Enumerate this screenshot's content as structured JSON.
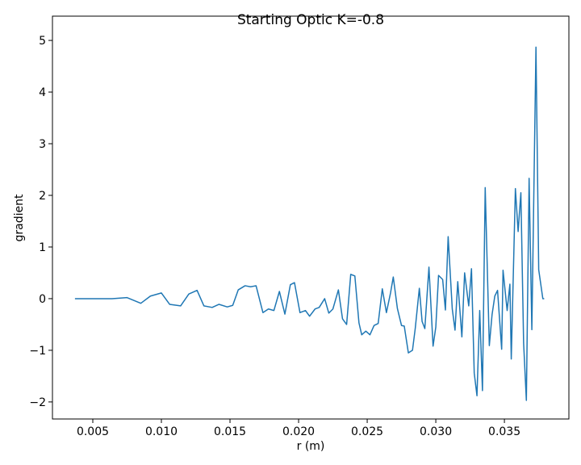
{
  "chart_data": {
    "type": "line",
    "title": "Starting Optic K=-0.8",
    "x_label": "r (m)",
    "y_label": "gradient",
    "x": [
      0.0037,
      0.0064,
      0.0075,
      0.0085,
      0.0092,
      0.01,
      0.0106,
      0.0114,
      0.012,
      0.0126,
      0.0131,
      0.0137,
      0.0142,
      0.0148,
      0.0152,
      0.0156,
      0.0161,
      0.0165,
      0.0169,
      0.0174,
      0.0178,
      0.0182,
      0.0186,
      0.019,
      0.0194,
      0.0197,
      0.0201,
      0.0205,
      0.0208,
      0.0212,
      0.0215,
      0.0219,
      0.0222,
      0.0225,
      0.0229,
      0.0232,
      0.0235,
      0.0238,
      0.0241,
      0.0244,
      0.0246,
      0.0249,
      0.0252,
      0.0255,
      0.0258,
      0.0261,
      0.0264,
      0.0267,
      0.0269,
      0.0272,
      0.0275,
      0.0277,
      0.028,
      0.0283,
      0.0285,
      0.0288,
      0.029,
      0.0292,
      0.0295,
      0.0298,
      0.03,
      0.0302,
      0.0305,
      0.0307,
      0.0309,
      0.0312,
      0.0314,
      0.0316,
      0.0319,
      0.0321,
      0.0324,
      0.0326,
      0.0328,
      0.033,
      0.0332,
      0.0334,
      0.0336,
      0.0339,
      0.0341,
      0.0343,
      0.0345,
      0.0348,
      0.0349,
      0.0352,
      0.0354,
      0.0355,
      0.0358,
      0.036,
      0.0362,
      0.0364,
      0.0366,
      0.0368,
      0.037,
      0.0373,
      0.0375,
      0.0378,
      0.0379
    ],
    "series": [
      {
        "name": "gradient",
        "color": "#1f77b4",
        "values": [
          0,
          0,
          0.02,
          -0.09,
          0.05,
          0.11,
          -0.11,
          -0.14,
          0.09,
          0.16,
          -0.14,
          -0.17,
          -0.11,
          -0.16,
          -0.13,
          0.17,
          0.25,
          0.23,
          0.25,
          -0.27,
          -0.2,
          -0.23,
          0.14,
          -0.3,
          0.27,
          0.31,
          -0.27,
          -0.23,
          -0.34,
          -0.2,
          -0.17,
          0,
          -0.28,
          -0.2,
          0.17,
          -0.39,
          -0.5,
          0.47,
          0.44,
          -0.47,
          -0.7,
          -0.63,
          -0.7,
          -0.52,
          -0.48,
          0.19,
          -0.27,
          0.11,
          0.42,
          -0.19,
          -0.52,
          -0.53,
          -1.05,
          -1.0,
          -0.58,
          0.2,
          -0.44,
          -0.58,
          0.61,
          -0.92,
          -0.55,
          0.45,
          0.37,
          -0.22,
          1.2,
          -0.2,
          -0.61,
          0.33,
          -0.74,
          0.5,
          -0.14,
          0.58,
          -1.44,
          -1.88,
          -0.23,
          -1.78,
          2.15,
          -0.91,
          -0.31,
          0.05,
          0.16,
          -0.98,
          0.55,
          -0.23,
          0.28,
          -1.17,
          2.13,
          1.3,
          2.05,
          -0.86,
          -1.97,
          2.33,
          -0.6,
          4.87,
          0.56,
          0,
          0
        ]
      }
    ],
    "xlim": [
      0.00206,
      0.0397
    ],
    "ylim": [
      -2.33,
      5.47
    ],
    "xticks": [
      0.005,
      {
        "value": 0.01,
        "label": "0.010"
      },
      0.015,
      {
        "value": 0.02,
        "label": "0.020"
      },
      0.025,
      {
        "value": 0.03,
        "label": "0.030"
      },
      0.035
    ],
    "yticks": [
      {
        "value": -2,
        "label": "−2"
      },
      {
        "value": -1,
        "label": "−1"
      },
      0,
      1,
      2,
      3,
      4,
      5
    ]
  }
}
